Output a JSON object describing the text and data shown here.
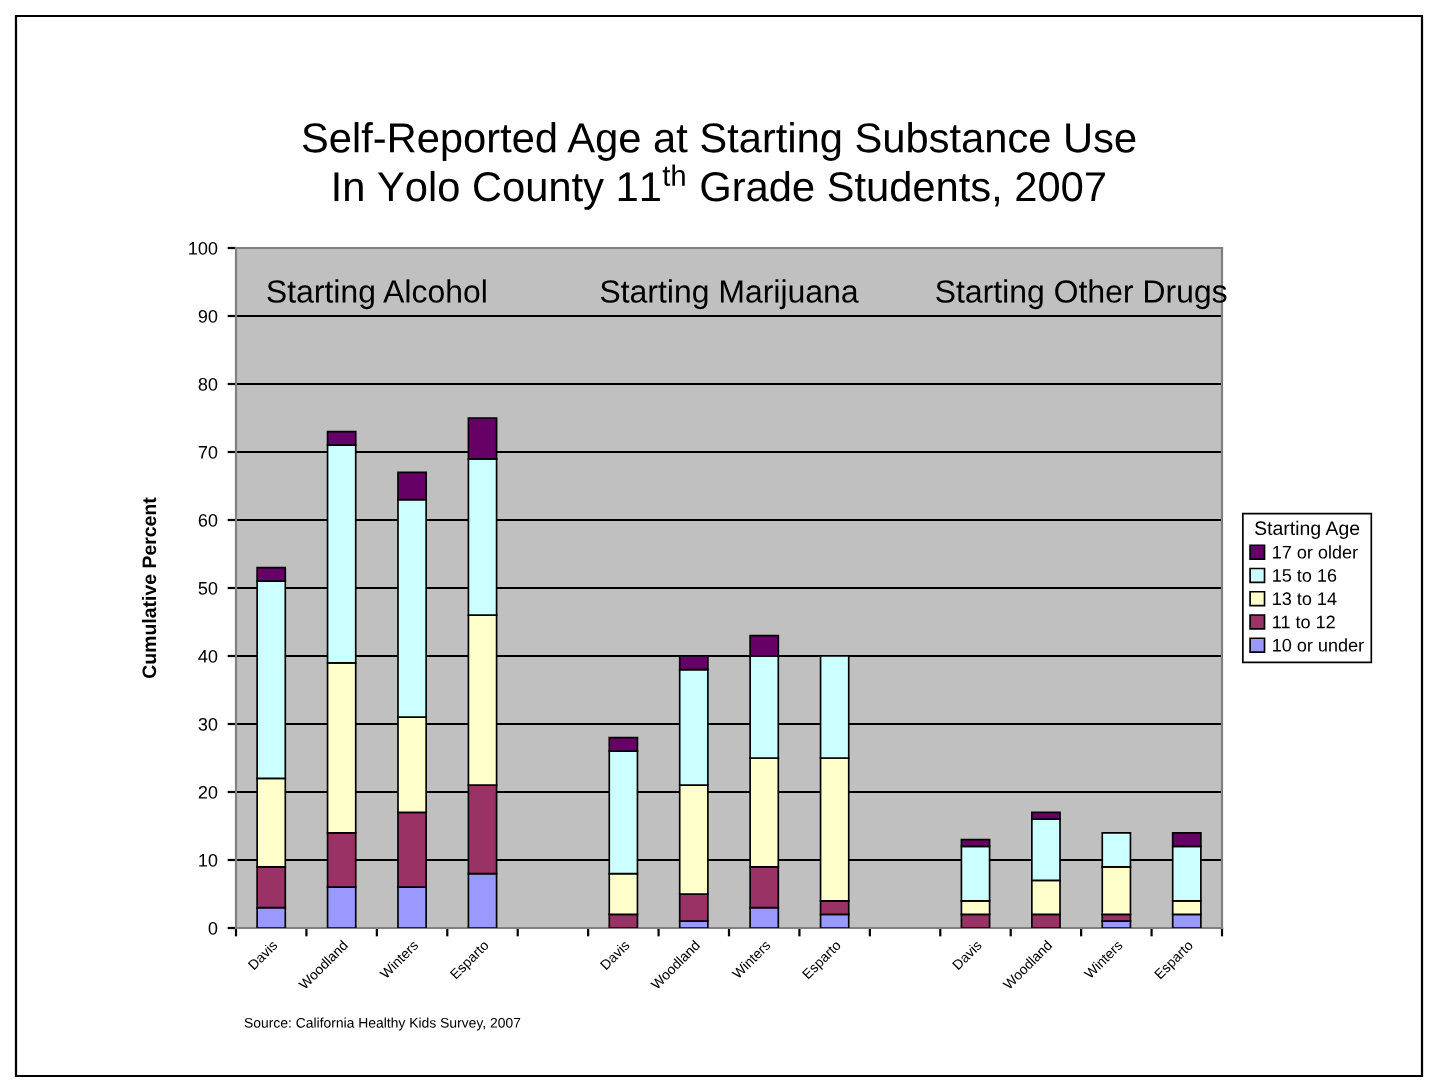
{
  "chart_data": {
    "type": "bar",
    "stacked": true,
    "title": "Self-Reported Age at Starting Substance Use\nIn Yolo County 11$^{th}$ Grade Students, 2007",
    "ylabel": "Cumulative Percent",
    "legend_title": "Starting Age",
    "categories": [
      "Davis",
      "Woodland",
      "Winters",
      "Esparto",
      null,
      "Davis",
      "Woodland",
      "Winters",
      "Esparto",
      null,
      "Davis",
      "Woodland",
      "Winters",
      "Esparto"
    ],
    "series": [
      {
        "name": "10 or under",
        "color": "#9999ff",
        "values": [
          3,
          6,
          6,
          8,
          null,
          0,
          1,
          3,
          2,
          null,
          0,
          0,
          1,
          2
        ]
      },
      {
        "name": "11 to 12",
        "color": "#993366",
        "values": [
          6,
          8,
          11,
          13,
          null,
          2,
          4,
          6,
          2,
          null,
          2,
          2,
          1,
          0
        ]
      },
      {
        "name": "13 to 14",
        "color": "#ffffcc",
        "values": [
          13,
          25,
          14,
          25,
          null,
          6,
          16,
          16,
          21,
          null,
          2,
          5,
          7,
          2
        ]
      },
      {
        "name": "15 to 16",
        "color": "#ccffff",
        "values": [
          29,
          32,
          32,
          23,
          null,
          18,
          17,
          15,
          15,
          null,
          8,
          9,
          5,
          8
        ]
      },
      {
        "name": "17 or older",
        "color": "#660066",
        "values": [
          2,
          2,
          4,
          6,
          null,
          2,
          2,
          3,
          0,
          null,
          1,
          1,
          0,
          2
        ]
      }
    ],
    "ylim": [
      0,
      100
    ],
    "yticks": [
      0,
      10,
      20,
      30,
      40,
      50,
      60,
      70,
      80,
      90,
      100
    ],
    "grid": "y",
    "legend": "right",
    "annotations": [
      "Starting Alcohol",
      "Starting Marijuana",
      "Starting Other Drugs",
      "Source: California Healthy Kids Survey, 2007"
    ]
  }
}
